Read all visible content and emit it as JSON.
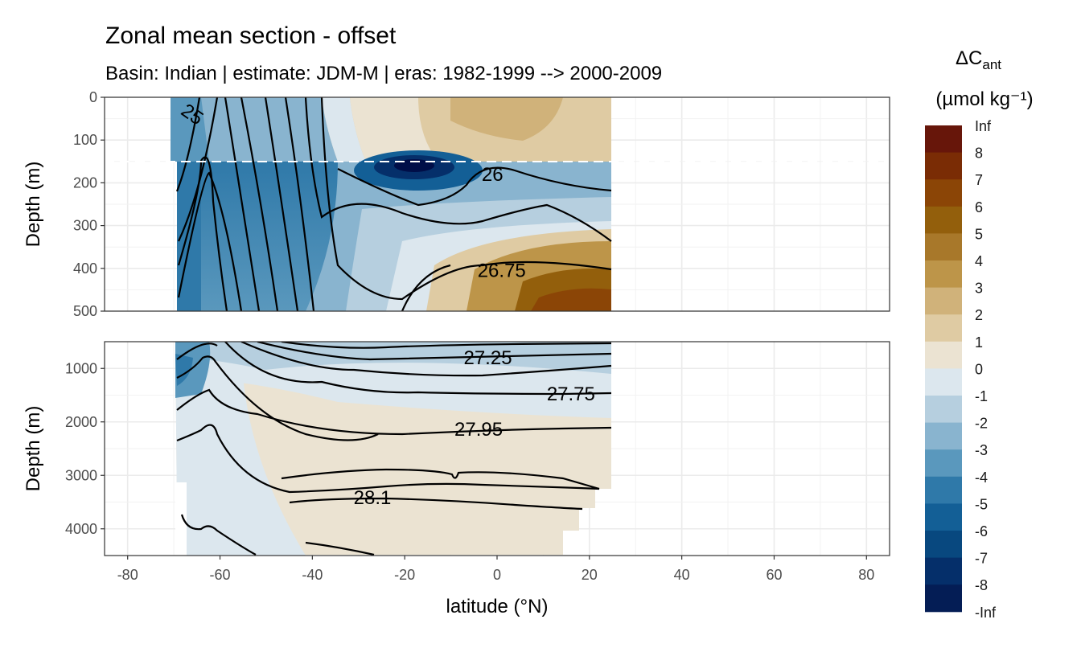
{
  "chart_data": {
    "type": "heatmap",
    "title": "Zonal mean section - offset",
    "subtitle": "Basin: Indian | estimate: JDM-M | eras: 1982-1999 --> 2000-2009",
    "xlabel": "latitude (°N)",
    "ylabel": "Depth (m)",
    "xlim": [
      -85,
      85
    ],
    "x_ticks": [
      -80,
      -60,
      -40,
      -20,
      0,
      20,
      40,
      60,
      80
    ],
    "x_tick_labels": [
      "-80",
      "-60",
      "-40",
      "-20",
      "0",
      "20",
      "40",
      "60",
      "80"
    ],
    "data_lat_range": [
      -70,
      24
    ],
    "panels": [
      {
        "name": "upper",
        "ylim": [
          0,
          500
        ],
        "y_ticks": [
          0,
          100,
          200,
          300,
          400,
          500
        ],
        "y_tick_labels": [
          "0",
          "100",
          "200",
          "300",
          "400",
          "500"
        ]
      },
      {
        "name": "lower",
        "ylim": [
          500,
          4500
        ],
        "y_ticks": [
          1000,
          2000,
          3000,
          4000
        ],
        "y_tick_labels": [
          "1000",
          "2000",
          "3000",
          "4000"
        ]
      }
    ],
    "mixed_layer_depth_line": 150,
    "isopycnal_labels": [
      {
        "text": "25",
        "lat": -66,
        "depth": 40,
        "rotate": 35
      },
      {
        "text": "26",
        "lat": -1,
        "depth": 180,
        "rotate": 0
      },
      {
        "text": "26.75",
        "lat": 1,
        "depth": 405,
        "rotate": 0
      },
      {
        "text": "27.25",
        "lat": -2,
        "depth": 800,
        "rotate": 0
      },
      {
        "text": "27.75",
        "lat": 16,
        "depth": 1480,
        "rotate": 0
      },
      {
        "text": "27.95",
        "lat": -4,
        "depth": 2140,
        "rotate": 0
      },
      {
        "text": "28.1",
        "lat": -27,
        "depth": 3420,
        "rotate": 0
      }
    ],
    "legend": {
      "title_main": "ΔC",
      "title_sub": "ant",
      "units": "(µmol kg⁻¹)",
      "labels": [
        "Inf",
        "8",
        "7",
        "6",
        "5",
        "4",
        "3",
        "2",
        "1",
        "0",
        "-1",
        "-2",
        "-3",
        "-4",
        "-5",
        "-6",
        "-7",
        "-8",
        "-Inf"
      ],
      "colors": [
        "#67160a",
        "#7a2c05",
        "#8b4506",
        "#935f0c",
        "#a8782a",
        "#bd9549",
        "#d0b27a",
        "#dfcba3",
        "#ebe3d2",
        "#dce7ee",
        "#b6cfdf",
        "#89b4cf",
        "#5a98bd",
        "#2f79a9",
        "#135f96",
        "#08487f",
        "#052f6a",
        "#041d55",
        "#000e48"
      ]
    }
  }
}
